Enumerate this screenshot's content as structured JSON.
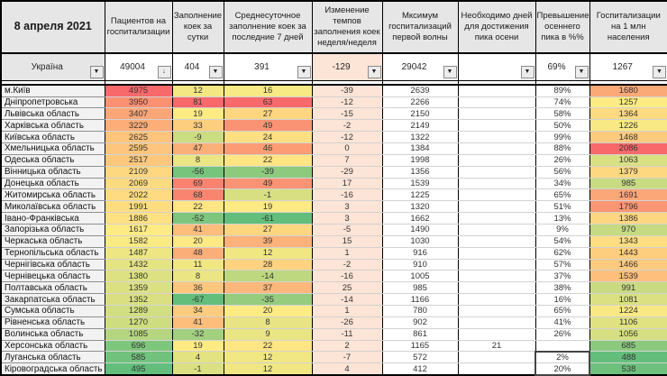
{
  "date_label": "8 апреля 2021",
  "columns": [
    {
      "key": "region",
      "label": "8 апреля 2021",
      "type": "name"
    },
    {
      "key": "patients",
      "label": "Пациентов на госпитализации",
      "type": "scale"
    },
    {
      "key": "fill_day",
      "label": "Заполнение коек за сутки",
      "type": "scale"
    },
    {
      "key": "avg7",
      "label": "Среднесуточное заполнение коек за последние 7 дней",
      "type": "scale"
    },
    {
      "key": "change_ww",
      "label": "Изменение темпов заполнения коек неделя/неделя",
      "type": "peach"
    },
    {
      "key": "max_wave1",
      "label": "Мксимум госпитализаций первой волны",
      "type": "plain"
    },
    {
      "key": "days_to_peak",
      "label": "Необходимо дней для достижения пика осени",
      "type": "plain"
    },
    {
      "key": "exceed_pct",
      "label": "Превышение осеннего пика в %%",
      "type": "plain"
    },
    {
      "key": "per_mln",
      "label": "Госпитализации на 1 млн населения",
      "type": "scale"
    }
  ],
  "totals": {
    "region": "Україна",
    "patients": "49004",
    "fill_day": "404",
    "avg7": "391",
    "change_ww": "-129",
    "max_wave1": "29042",
    "days_to_peak": "",
    "exceed_pct": "69%",
    "per_mln": "1267"
  },
  "rows": [
    {
      "region": "м.Київ",
      "patients": 4975,
      "fill_day": 12,
      "avg7": 16,
      "change_ww": -39,
      "max_wave1": 2639,
      "days_to_peak": "",
      "exceed_pct": "89%",
      "per_mln": 1680
    },
    {
      "region": "Дніпропетровська",
      "patients": 3950,
      "fill_day": 81,
      "avg7": 63,
      "change_ww": -12,
      "max_wave1": 2266,
      "days_to_peak": "",
      "exceed_pct": "74%",
      "per_mln": 1257
    },
    {
      "region": "Львівська область",
      "patients": 3407,
      "fill_day": 19,
      "avg7": 27,
      "change_ww": -15,
      "max_wave1": 2150,
      "days_to_peak": "",
      "exceed_pct": "58%",
      "per_mln": 1364
    },
    {
      "region": "Харківська область",
      "patients": 3229,
      "fill_day": 33,
      "avg7": 49,
      "change_ww": -2,
      "max_wave1": 2149,
      "days_to_peak": "",
      "exceed_pct": "50%",
      "per_mln": 1226
    },
    {
      "region": "Київська область",
      "patients": 2625,
      "fill_day": -9,
      "avg7": 24,
      "change_ww": -12,
      "max_wave1": 1322,
      "days_to_peak": "",
      "exceed_pct": "99%",
      "per_mln": 1468
    },
    {
      "region": "Хмельницька область",
      "patients": 2595,
      "fill_day": 47,
      "avg7": 46,
      "change_ww": 0,
      "max_wave1": 1384,
      "days_to_peak": "",
      "exceed_pct": "88%",
      "per_mln": 2086
    },
    {
      "region": "Одеська область",
      "patients": 2517,
      "fill_day": 8,
      "avg7": 22,
      "change_ww": 7,
      "max_wave1": 1998,
      "days_to_peak": "",
      "exceed_pct": "26%",
      "per_mln": 1063
    },
    {
      "region": "Вінницька область",
      "patients": 2109,
      "fill_day": -56,
      "avg7": -39,
      "change_ww": -29,
      "max_wave1": 1356,
      "days_to_peak": "",
      "exceed_pct": "56%",
      "per_mln": 1379
    },
    {
      "region": "Донецька область",
      "patients": 2069,
      "fill_day": 69,
      "avg7": 49,
      "change_ww": 17,
      "max_wave1": 1539,
      "days_to_peak": "",
      "exceed_pct": "34%",
      "per_mln": 985
    },
    {
      "region": "Житомирська область",
      "patients": 2022,
      "fill_day": 68,
      "avg7": -1,
      "change_ww": -16,
      "max_wave1": 1225,
      "days_to_peak": "",
      "exceed_pct": "65%",
      "per_mln": 1691
    },
    {
      "region": "Миколаївська область",
      "patients": 1991,
      "fill_day": 22,
      "avg7": 19,
      "change_ww": 3,
      "max_wave1": 1320,
      "days_to_peak": "",
      "exceed_pct": "51%",
      "per_mln": 1796
    },
    {
      "region": "Івано-Франківська",
      "patients": 1886,
      "fill_day": -52,
      "avg7": -61,
      "change_ww": 3,
      "max_wave1": 1662,
      "days_to_peak": "",
      "exceed_pct": "13%",
      "per_mln": 1386
    },
    {
      "region": "Запорізька область",
      "patients": 1617,
      "fill_day": 41,
      "avg7": 27,
      "change_ww": -5,
      "max_wave1": 1490,
      "days_to_peak": "",
      "exceed_pct": "9%",
      "per_mln": 970
    },
    {
      "region": "Черкаська область",
      "patients": 1582,
      "fill_day": 20,
      "avg7": 39,
      "change_ww": 15,
      "max_wave1": 1030,
      "days_to_peak": "",
      "exceed_pct": "54%",
      "per_mln": 1343
    },
    {
      "region": "Тернопільська область",
      "patients": 1487,
      "fill_day": 48,
      "avg7": 12,
      "change_ww": 1,
      "max_wave1": 916,
      "days_to_peak": "",
      "exceed_pct": "62%",
      "per_mln": 1443
    },
    {
      "region": "Чернігівська область",
      "patients": 1432,
      "fill_day": 11,
      "avg7": 28,
      "change_ww": -2,
      "max_wave1": 910,
      "days_to_peak": "",
      "exceed_pct": "57%",
      "per_mln": 1466
    },
    {
      "region": "Чернівецька область",
      "patients": 1380,
      "fill_day": 8,
      "avg7": -14,
      "change_ww": -16,
      "max_wave1": 1005,
      "days_to_peak": "",
      "exceed_pct": "37%",
      "per_mln": 1539
    },
    {
      "region": "Полтавська область",
      "patients": 1359,
      "fill_day": 36,
      "avg7": 37,
      "change_ww": 25,
      "max_wave1": 985,
      "days_to_peak": "",
      "exceed_pct": "38%",
      "per_mln": 991
    },
    {
      "region": "Закарпатська область",
      "patients": 1352,
      "fill_day": -67,
      "avg7": -35,
      "change_ww": -14,
      "max_wave1": 1166,
      "days_to_peak": "",
      "exceed_pct": "16%",
      "per_mln": 1081
    },
    {
      "region": "Сумська область",
      "patients": 1289,
      "fill_day": 34,
      "avg7": 20,
      "change_ww": 1,
      "max_wave1": 780,
      "days_to_peak": "",
      "exceed_pct": "65%",
      "per_mln": 1224
    },
    {
      "region": "Рівненська область",
      "patients": 1270,
      "fill_day": 41,
      "avg7": 8,
      "change_ww": -26,
      "max_wave1": 902,
      "days_to_peak": "",
      "exceed_pct": "41%",
      "per_mln": 1106
    },
    {
      "region": "Волинська область",
      "patients": 1085,
      "fill_day": -32,
      "avg7": 9,
      "change_ww": -11,
      "max_wave1": 861,
      "days_to_peak": "",
      "exceed_pct": "26%",
      "per_mln": 1056
    },
    {
      "region": "Херсонська область",
      "patients": 696,
      "fill_day": 19,
      "avg7": 22,
      "change_ww": 2,
      "max_wave1": 1165,
      "days_to_peak": "21",
      "exceed_pct": "",
      "per_mln": 685
    },
    {
      "region": "Луганська область",
      "patients": 585,
      "fill_day": 4,
      "avg7": 12,
      "change_ww": -7,
      "max_wave1": 572,
      "days_to_peak": "",
      "exceed_pct": "2%",
      "per_mln": 488
    },
    {
      "region": "Кіровоградська область",
      "patients": 495,
      "fill_day": -1,
      "avg7": 12,
      "change_ww": 4,
      "max_wave1": 412,
      "days_to_peak": "",
      "exceed_pct": "20%",
      "per_mln": 538
    }
  ],
  "colors": {
    "scale_low": "#63be7b",
    "scale_mid": "#ffeb84",
    "scale_high": "#f8696b",
    "peach": "#fce4d6",
    "header_bg": "#e7e6e6",
    "name_bg": "#f2f2f2"
  },
  "icons": {
    "filter_dropdown": "▼",
    "filter_sorted_desc": "↓"
  },
  "selection": {
    "column": "exceed_pct",
    "row_start": 23,
    "row_end": 24
  }
}
